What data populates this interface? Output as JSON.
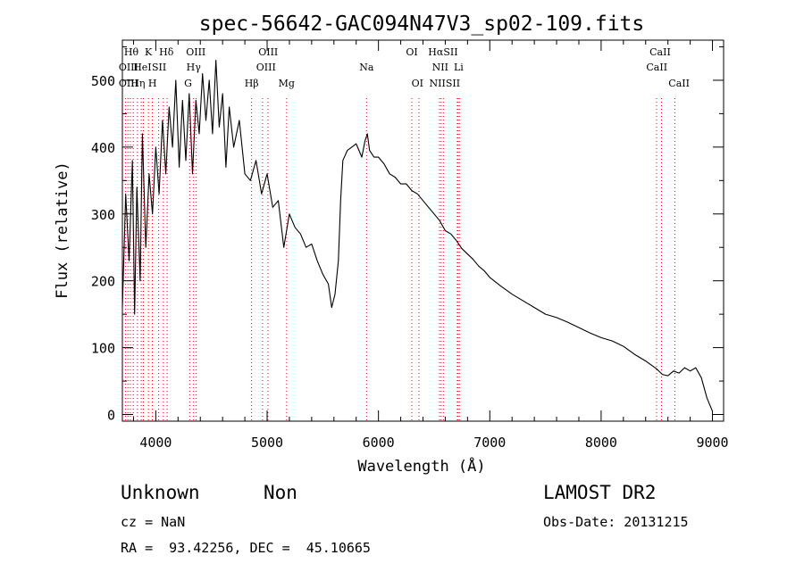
{
  "chart_data": {
    "type": "line",
    "title": "spec-56642-GAC094N47V3_sp02-109.fits",
    "xlabel": "Wavelength (Å)",
    "ylabel": "Flux (relative)",
    "xlim": [
      3700,
      9100
    ],
    "ylim": [
      -10,
      560
    ],
    "x_ticks": [
      4000,
      5000,
      6000,
      7000,
      8000,
      9000
    ],
    "y_ticks": [
      0,
      100,
      200,
      300,
      400,
      500
    ],
    "grid": false,
    "series": [
      {
        "points": [
          [
            3700,
            160
          ],
          [
            3730,
            330
          ],
          [
            3760,
            230
          ],
          [
            3790,
            380
          ],
          [
            3810,
            150
          ],
          [
            3830,
            340
          ],
          [
            3860,
            200
          ],
          [
            3880,
            420
          ],
          [
            3910,
            250
          ],
          [
            3940,
            360
          ],
          [
            3970,
            300
          ],
          [
            4000,
            400
          ],
          [
            4030,
            330
          ],
          [
            4060,
            440
          ],
          [
            4090,
            360
          ],
          [
            4120,
            460
          ],
          [
            4150,
            400
          ],
          [
            4180,
            500
          ],
          [
            4210,
            370
          ],
          [
            4240,
            470
          ],
          [
            4270,
            380
          ],
          [
            4300,
            480
          ],
          [
            4330,
            360
          ],
          [
            4360,
            470
          ],
          [
            4390,
            420
          ],
          [
            4420,
            510
          ],
          [
            4450,
            440
          ],
          [
            4480,
            500
          ],
          [
            4510,
            420
          ],
          [
            4540,
            530
          ],
          [
            4570,
            430
          ],
          [
            4600,
            480
          ],
          [
            4630,
            370
          ],
          [
            4660,
            460
          ],
          [
            4700,
            400
          ],
          [
            4750,
            440
          ],
          [
            4800,
            360
          ],
          [
            4850,
            350
          ],
          [
            4900,
            380
          ],
          [
            4950,
            330
          ],
          [
            5000,
            360
          ],
          [
            5050,
            310
          ],
          [
            5100,
            320
          ],
          [
            5150,
            250
          ],
          [
            5200,
            300
          ],
          [
            5250,
            280
          ],
          [
            5300,
            270
          ],
          [
            5350,
            250
          ],
          [
            5400,
            255
          ],
          [
            5450,
            230
          ],
          [
            5500,
            210
          ],
          [
            5550,
            195
          ],
          [
            5580,
            160
          ],
          [
            5610,
            180
          ],
          [
            5640,
            230
          ],
          [
            5660,
            320
          ],
          [
            5680,
            380
          ],
          [
            5720,
            395
          ],
          [
            5760,
            400
          ],
          [
            5800,
            405
          ],
          [
            5850,
            385
          ],
          [
            5880,
            410
          ],
          [
            5900,
            420
          ],
          [
            5920,
            395
          ],
          [
            5960,
            385
          ],
          [
            6000,
            385
          ],
          [
            6050,
            375
          ],
          [
            6100,
            360
          ],
          [
            6150,
            355
          ],
          [
            6200,
            345
          ],
          [
            6250,
            345
          ],
          [
            6300,
            335
          ],
          [
            6350,
            330
          ],
          [
            6400,
            320
          ],
          [
            6450,
            310
          ],
          [
            6500,
            300
          ],
          [
            6550,
            290
          ],
          [
            6600,
            275
          ],
          [
            6650,
            270
          ],
          [
            6700,
            260
          ],
          [
            6750,
            248
          ],
          [
            6800,
            240
          ],
          [
            6850,
            232
          ],
          [
            6900,
            222
          ],
          [
            6950,
            215
          ],
          [
            7000,
            205
          ],
          [
            7100,
            192
          ],
          [
            7200,
            180
          ],
          [
            7300,
            170
          ],
          [
            7400,
            160
          ],
          [
            7500,
            150
          ],
          [
            7600,
            145
          ],
          [
            7700,
            138
          ],
          [
            7800,
            130
          ],
          [
            7900,
            122
          ],
          [
            8000,
            115
          ],
          [
            8100,
            110
          ],
          [
            8200,
            102
          ],
          [
            8300,
            90
          ],
          [
            8400,
            80
          ],
          [
            8500,
            68
          ],
          [
            8550,
            60
          ],
          [
            8600,
            58
          ],
          [
            8650,
            65
          ],
          [
            8700,
            62
          ],
          [
            8750,
            70
          ],
          [
            8800,
            65
          ],
          [
            8850,
            70
          ],
          [
            8900,
            55
          ],
          [
            8950,
            25
          ],
          [
            9000,
            5
          ]
        ]
      }
    ],
    "lines": [
      {
        "wl": 3727,
        "label": "OII"
      },
      {
        "wl": 3750,
        "label": "OIII"
      },
      {
        "wl": 3771,
        "label": "Hθ"
      },
      {
        "wl": 3798,
        "label": "Hθ"
      },
      {
        "wl": 3835,
        "label": "Hη"
      },
      {
        "wl": 3869,
        "label": "He I"
      },
      {
        "wl": 3889,
        "label": "Hη"
      },
      {
        "wl": 3934,
        "label": "K"
      },
      {
        "wl": 3969,
        "label": "H"
      },
      {
        "wl": 4026,
        "label": "SII"
      },
      {
        "wl": 4068,
        "label": "SII"
      },
      {
        "wl": 4102,
        "label": "Hδ"
      },
      {
        "wl": 4304,
        "label": "G"
      },
      {
        "wl": 4340,
        "label": "Hγ"
      },
      {
        "wl": 4363,
        "label": "OIII"
      },
      {
        "wl": 4861,
        "label": "Hβ"
      },
      {
        "wl": 4959,
        "label": "OIII"
      },
      {
        "wl": 5007,
        "label": "OIII"
      },
      {
        "wl": 5175,
        "label": "Mg"
      },
      {
        "wl": 5893,
        "label": "Na"
      },
      {
        "wl": 6300,
        "label": "OI"
      },
      {
        "wl": 6364,
        "label": "OI"
      },
      {
        "wl": 6548,
        "label": "NII"
      },
      {
        "wl": 6563,
        "label": "Hα"
      },
      {
        "wl": 6583,
        "label": "NII"
      },
      {
        "wl": 6708,
        "label": "Li"
      },
      {
        "wl": 6716,
        "label": "SII"
      },
      {
        "wl": 6731,
        "label": "SII"
      },
      {
        "wl": 8498,
        "label": "CaII"
      },
      {
        "wl": 8542,
        "label": "CaII"
      },
      {
        "wl": 8662,
        "label": "CaII"
      }
    ],
    "line_labels": [
      {
        "wl": 3755,
        "row": 1,
        "text": "OIII"
      },
      {
        "wl": 3780,
        "row": 0,
        "text": "Hθ"
      },
      {
        "wl": 3755,
        "row": 2,
        "text": "OIII"
      },
      {
        "wl": 3840,
        "row": 2,
        "text": "Hη"
      },
      {
        "wl": 3880,
        "row": 1,
        "text": "HeI"
      },
      {
        "wl": 3934,
        "row": 0,
        "text": "K"
      },
      {
        "wl": 3970,
        "row": 2,
        "text": "H"
      },
      {
        "wl": 4030,
        "row": 1,
        "text": "SII"
      },
      {
        "wl": 4095,
        "row": 0,
        "text": "Hδ"
      },
      {
        "wl": 4290,
        "row": 2,
        "text": "G"
      },
      {
        "wl": 4340,
        "row": 1,
        "text": "Hγ"
      },
      {
        "wl": 4360,
        "row": 0,
        "text": "OIII"
      },
      {
        "wl": 4861,
        "row": 2,
        "text": "Hβ"
      },
      {
        "wl": 4990,
        "row": 1,
        "text": "OIII"
      },
      {
        "wl": 5010,
        "row": 0,
        "text": "OIII"
      },
      {
        "wl": 5175,
        "row": 2,
        "text": "Mg"
      },
      {
        "wl": 5893,
        "row": 1,
        "text": "Na"
      },
      {
        "wl": 6300,
        "row": 0,
        "text": "OI"
      },
      {
        "wl": 6350,
        "row": 2,
        "text": "OI"
      },
      {
        "wl": 6555,
        "row": 1,
        "text": "NII"
      },
      {
        "wl": 6580,
        "row": 0,
        "text": "HαSII"
      },
      {
        "wl": 6595,
        "row": 2,
        "text": "NIISII"
      },
      {
        "wl": 6720,
        "row": 1,
        "text": "Li"
      },
      {
        "wl": 8530,
        "row": 0,
        "text": "CaII"
      },
      {
        "wl": 8500,
        "row": 1,
        "text": "CaII"
      },
      {
        "wl": 8700,
        "row": 2,
        "text": "CaII"
      }
    ],
    "colors": {
      "spectrum": "#000000",
      "lines": "#e00000",
      "frame": "#000000"
    }
  },
  "info": {
    "class": "Unknown",
    "subclass": "Non",
    "survey": "LAMOST DR2",
    "cz": "cz = NaN",
    "obs_date": "Obs-Date: 20131215",
    "coords": "RA =  93.42256, DEC =  45.10665"
  }
}
